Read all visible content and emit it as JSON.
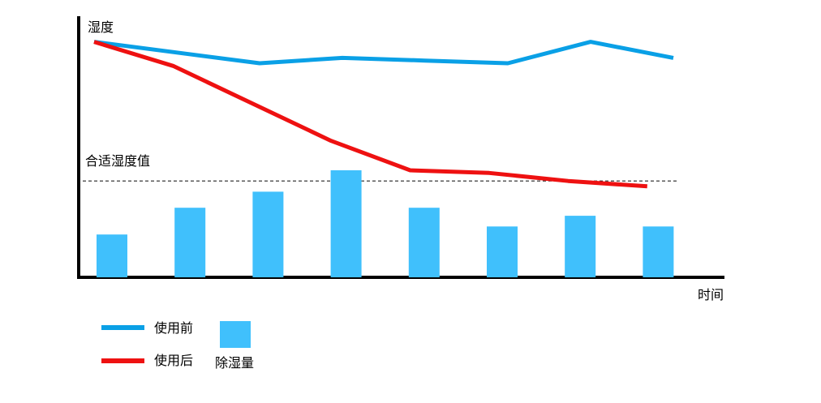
{
  "chart_data": {
    "type": "bar",
    "title": "",
    "ylabel": "湿度",
    "xlabel": "时间",
    "ylim": [
      0,
      100
    ],
    "grid": false,
    "legend_position": "bottom-left",
    "reference_line": {
      "label": "合适湿度值",
      "value": 36
    },
    "x": [
      1,
      2,
      3,
      4,
      5,
      6,
      7,
      8
    ],
    "series": [
      {
        "name": "使用前",
        "kind": "line",
        "color": "#0aa0e6",
        "values": [
          88,
          84,
          80,
          82,
          81,
          80,
          88,
          82
        ]
      },
      {
        "name": "使用后",
        "kind": "line",
        "color": "#ee1111",
        "values": [
          88,
          79,
          65,
          51,
          40,
          39,
          36,
          34
        ]
      },
      {
        "name": "除湿量",
        "kind": "bar",
        "color": "#40c0fc",
        "values": [
          16,
          26,
          32,
          40,
          26,
          19,
          23,
          19
        ]
      }
    ]
  }
}
